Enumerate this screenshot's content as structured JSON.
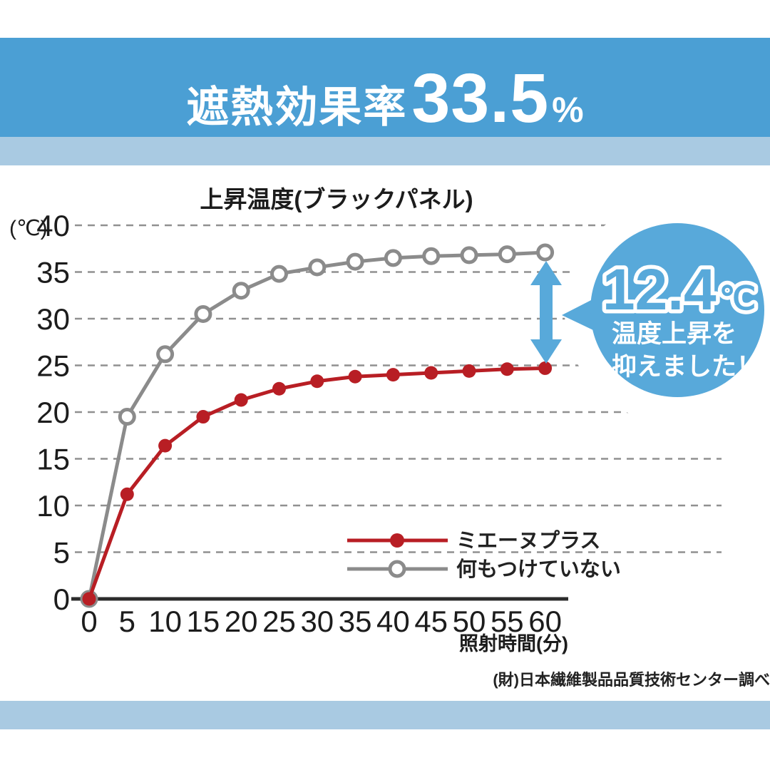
{
  "banner": {
    "prefix": "遮熱効果率",
    "number": "33.5",
    "percent": "%"
  },
  "chart_data": {
    "type": "line",
    "title": "上昇温度(ブラックパネル)",
    "x": [
      0,
      5,
      10,
      15,
      20,
      25,
      30,
      35,
      40,
      45,
      50,
      55,
      60
    ],
    "xlabel": "照射時間(分)",
    "ylabel_unit": "(℃)",
    "ylim": [
      0,
      40
    ],
    "yticks": [
      0,
      5,
      10,
      15,
      20,
      25,
      30,
      35,
      40
    ],
    "grid": "horizontal dashed",
    "legend_position": "inside lower right",
    "series": [
      {
        "name": "ミエーヌプラス",
        "color": "#B81E24",
        "marker": "filled-circle",
        "values": [
          0,
          11.2,
          16.4,
          19.5,
          21.3,
          22.5,
          23.3,
          23.8,
          24.0,
          24.2,
          24.4,
          24.6,
          24.7
        ]
      },
      {
        "name": "何もつけていない",
        "color": "#8B8B8B",
        "marker": "open-circle",
        "values": [
          0,
          19.5,
          26.2,
          30.5,
          33.0,
          34.8,
          35.5,
          36.1,
          36.5,
          36.7,
          36.8,
          36.9,
          37.1
        ]
      }
    ],
    "annotation": {
      "value": "12.4",
      "unit": "℃",
      "line1": "温度上昇を",
      "line2": "抑えました！",
      "at_x": 60
    }
  },
  "source_note": "(財)日本繊維製品品質技術センター調べ",
  "colors": {
    "banner_blue": "#4B9FD4",
    "light_band_blue": "#A9CAE2",
    "bubble_blue": "#58A9DA",
    "arrow_blue": "#58A9DA",
    "series_red": "#B81E24",
    "series_gray": "#8B8B8B",
    "grid_gray": "#909090",
    "axis_black": "#2B2B2B"
  }
}
